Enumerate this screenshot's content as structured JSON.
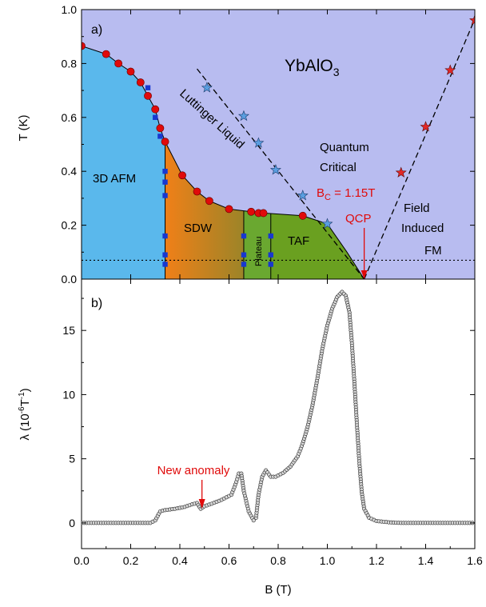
{
  "chart_data": [
    {
      "type": "phase-diagram",
      "panel_label": "a)",
      "ylabel": "T (K)",
      "xlim": [
        0.0,
        1.6
      ],
      "ylim": [
        0.0,
        1.0
      ],
      "y_ticks": [
        "0.0",
        "0.2",
        "0.4",
        "0.6",
        "0.8",
        "1.0"
      ],
      "colors": {
        "paramagnetic": "#b8bcf0",
        "afm_3d": "#5ab8ec",
        "sdw_start": "#f08018",
        "sdw_end": "#9c8428",
        "plateau": "#6aa830",
        "taf": "#6aa020",
        "circle": "#e00a0a",
        "square": "#1838d0",
        "star_blue": "#5a9ee0",
        "star_red": "#e22828",
        "annotation": "#e00a0a"
      },
      "regions": [
        {
          "name": "3D AFM",
          "label": "3D AFM"
        },
        {
          "name": "SDW",
          "label": "SDW"
        },
        {
          "name": "Plateau",
          "label": "Plateau"
        },
        {
          "name": "TAF",
          "label": "TAF"
        }
      ],
      "labels": {
        "compound": "YbAlO",
        "compound_sub": "3",
        "luttinger": "Luttinger Liquid",
        "quantum_critical_1": "Quantum",
        "quantum_critical_2": "Critical",
        "field_induced_1": "Field",
        "field_induced_2": "Induced",
        "field_induced_3": "FM",
        "bc_main": "B",
        "bc_sub": "C",
        "bc_value": " = 1.15T",
        "qcp": "QCP"
      },
      "phase_boundary_circles": {
        "x": [
          0.0,
          0.1,
          0.15,
          0.2,
          0.24,
          0.27,
          0.3,
          0.32,
          0.34,
          0.41,
          0.47,
          0.52,
          0.6,
          0.69,
          0.72,
          0.74,
          0.9
        ],
        "y": [
          0.865,
          0.835,
          0.8,
          0.77,
          0.73,
          0.68,
          0.63,
          0.56,
          0.51,
          0.385,
          0.325,
          0.29,
          0.26,
          0.25,
          0.245,
          0.245,
          0.235
        ]
      },
      "phase_boundary_squares": {
        "x": [
          0.27,
          0.3,
          0.32,
          0.34,
          0.34,
          0.34,
          0.34,
          0.34,
          0.34,
          0.66,
          0.66,
          0.66,
          0.77,
          0.77,
          0.77
        ],
        "y": [
          0.71,
          0.6,
          0.53,
          0.4,
          0.31,
          0.16,
          0.09,
          0.055,
          0.36,
          0.16,
          0.09,
          0.055,
          0.16,
          0.09,
          0.055
        ]
      },
      "luttinger_stars": {
        "x": [
          0.51,
          0.66,
          0.72,
          0.79,
          0.9,
          1.0
        ],
        "y": [
          0.71,
          0.605,
          0.505,
          0.405,
          0.31,
          0.205
        ]
      },
      "fm_stars": {
        "x": [
          1.3,
          1.4,
          1.5,
          1.6
        ],
        "y": [
          0.395,
          0.565,
          0.775,
          0.96
        ]
      },
      "dashed_line_luttinger": {
        "x": [
          0.47,
          1.15
        ],
        "y": [
          0.78,
          0.0
        ]
      },
      "dashed_line_fm": {
        "x": [
          1.15,
          1.6
        ],
        "y": [
          0.0,
          0.965
        ]
      },
      "dotted_line_y": 0.07,
      "qcp_x": 1.15
    },
    {
      "type": "line",
      "panel_label": "b)",
      "xlabel": "B (T)",
      "ylabel_main": "λ (10",
      "ylabel_sup1": "-6",
      "ylabel_mid": "T",
      "ylabel_sup2": "-1",
      "ylabel_end": ")",
      "xlim": [
        0.0,
        1.6
      ],
      "ylim": [
        -2.0,
        19.0
      ],
      "x_ticks": [
        "0.0",
        "0.2",
        "0.4",
        "0.6",
        "0.8",
        "1.0",
        "1.2",
        "1.4",
        "1.6"
      ],
      "y_ticks": [
        "0",
        "5",
        "10",
        "15"
      ],
      "annotation": "New anomaly",
      "annotation_x": 0.49,
      "series_points": [
        [
          0.0,
          0.0
        ],
        [
          0.1,
          0.0
        ],
        [
          0.2,
          0.0
        ],
        [
          0.28,
          0.0
        ],
        [
          0.3,
          0.2
        ],
        [
          0.32,
          0.9
        ],
        [
          0.34,
          1.0
        ],
        [
          0.38,
          1.1
        ],
        [
          0.42,
          1.25
        ],
        [
          0.45,
          1.45
        ],
        [
          0.47,
          1.55
        ],
        [
          0.485,
          1.1
        ],
        [
          0.5,
          1.3
        ],
        [
          0.53,
          1.5
        ],
        [
          0.57,
          1.8
        ],
        [
          0.61,
          2.2
        ],
        [
          0.63,
          3.2
        ],
        [
          0.64,
          3.85
        ],
        [
          0.65,
          3.85
        ],
        [
          0.66,
          2.5
        ],
        [
          0.68,
          0.9
        ],
        [
          0.7,
          0.2
        ],
        [
          0.71,
          0.4
        ],
        [
          0.72,
          2.2
        ],
        [
          0.735,
          3.6
        ],
        [
          0.75,
          4.1
        ],
        [
          0.77,
          3.6
        ],
        [
          0.79,
          3.6
        ],
        [
          0.82,
          3.9
        ],
        [
          0.85,
          4.4
        ],
        [
          0.88,
          5.2
        ],
        [
          0.9,
          6.2
        ],
        [
          0.92,
          7.5
        ],
        [
          0.94,
          9.2
        ],
        [
          0.96,
          11.3
        ],
        [
          0.98,
          13.6
        ],
        [
          1.0,
          15.4
        ],
        [
          1.02,
          16.7
        ],
        [
          1.04,
          17.6
        ],
        [
          1.06,
          18.0
        ],
        [
          1.075,
          17.7
        ],
        [
          1.09,
          16.4
        ],
        [
          1.1,
          14.0
        ],
        [
          1.11,
          11.0
        ],
        [
          1.12,
          7.8
        ],
        [
          1.13,
          4.8
        ],
        [
          1.14,
          2.4
        ],
        [
          1.15,
          1.1
        ],
        [
          1.17,
          0.4
        ],
        [
          1.2,
          0.15
        ],
        [
          1.25,
          0.05
        ],
        [
          1.3,
          0.0
        ],
        [
          1.4,
          0.0
        ],
        [
          1.5,
          0.0
        ],
        [
          1.6,
          0.0
        ]
      ]
    }
  ]
}
